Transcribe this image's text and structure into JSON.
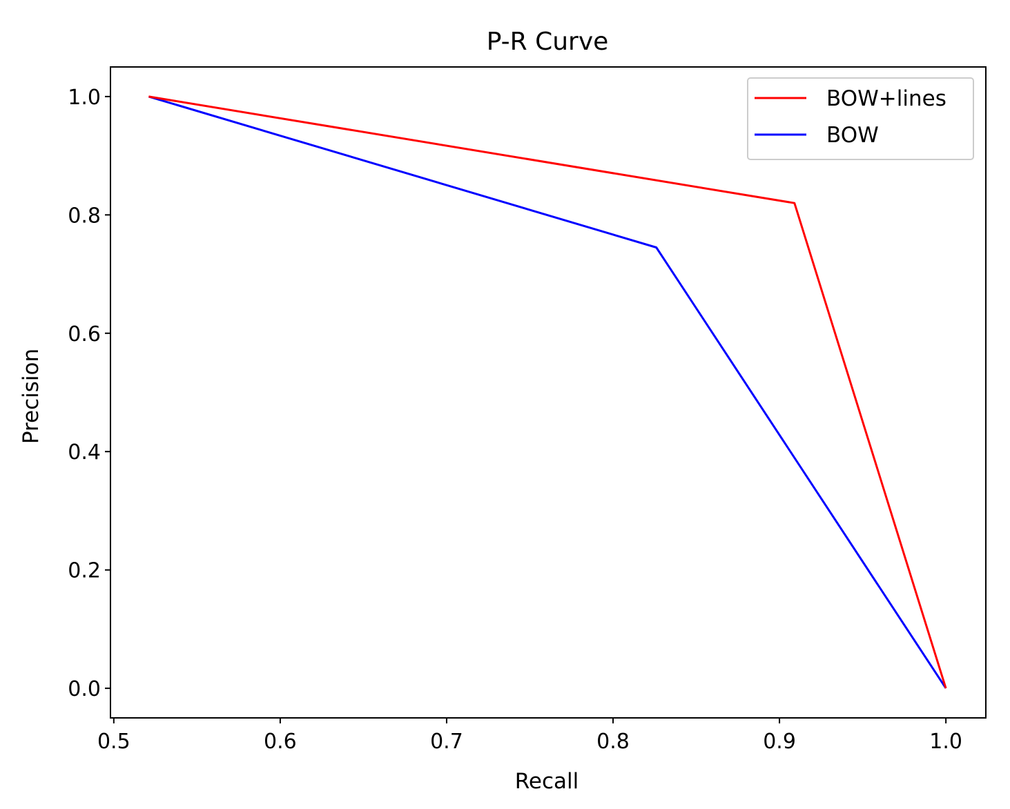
{
  "chart_data": {
    "type": "line",
    "title": "P-R Curve",
    "xlabel": "Recall",
    "ylabel": "Precision",
    "xlim": [
      0.498,
      1.024
    ],
    "ylim": [
      -0.05,
      1.05
    ],
    "xticks": [
      0.5,
      0.6,
      0.7,
      0.8,
      0.9,
      1.0
    ],
    "xtick_labels": [
      "0.5",
      "0.6",
      "0.7",
      "0.8",
      "0.9",
      "1.0"
    ],
    "yticks": [
      0.0,
      0.2,
      0.4,
      0.6,
      0.8,
      1.0
    ],
    "ytick_labels": [
      "0.0",
      "0.2",
      "0.4",
      "0.6",
      "0.8",
      "1.0"
    ],
    "grid": false,
    "legend_position": "top-right",
    "series": [
      {
        "name": "BOW+lines",
        "color": "#ff0000",
        "x": [
          0.521,
          0.909,
          1.0
        ],
        "y": [
          1.0,
          0.82,
          0.0
        ]
      },
      {
        "name": "BOW",
        "color": "#0000ff",
        "x": [
          0.521,
          0.826,
          1.0
        ],
        "y": [
          1.0,
          0.745,
          0.0
        ]
      }
    ]
  }
}
